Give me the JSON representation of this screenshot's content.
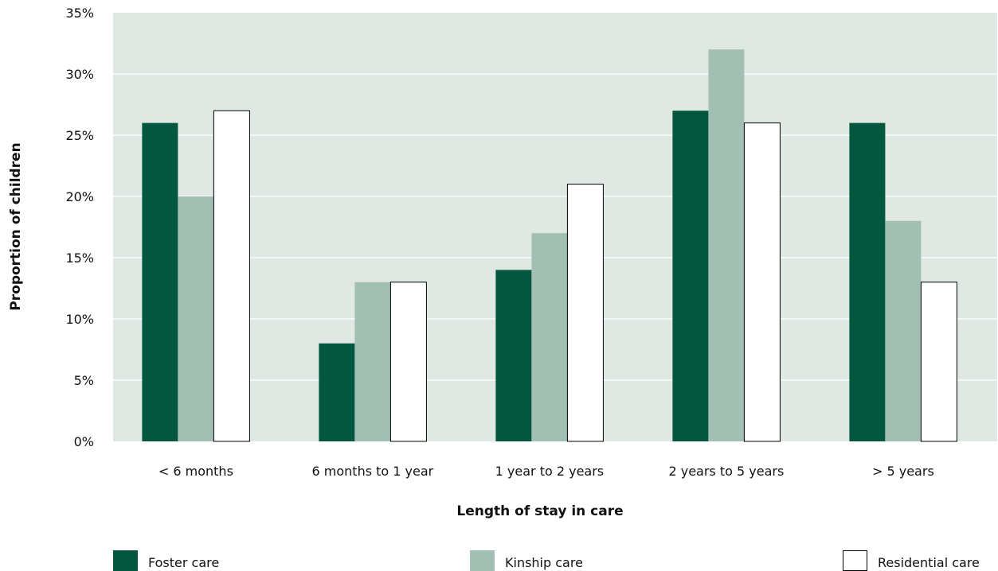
{
  "chart_data": {
    "type": "bar",
    "title": "",
    "xlabel": "Length of stay in care",
    "ylabel": "Proportion of children",
    "ylim": [
      0,
      35
    ],
    "yticks": [
      0,
      5,
      10,
      15,
      20,
      25,
      30,
      35
    ],
    "ytick_labels": [
      "0%",
      "5%",
      "10%",
      "15%",
      "20%",
      "25%",
      "30%",
      "35%"
    ],
    "categories": [
      "< 6 months",
      "6 months to 1 year",
      "1 year to 2 years",
      "2 years to 5 years",
      "> 5 years"
    ],
    "series": [
      {
        "name": "Foster care",
        "color": "#03573f",
        "values": [
          26,
          8,
          14,
          27,
          26
        ]
      },
      {
        "name": "Kinship care",
        "color": "#a2bfb3",
        "values": [
          20,
          13,
          17,
          32,
          18
        ]
      },
      {
        "name": "Residential care",
        "color": "#ffffff",
        "values": [
          27,
          13,
          21,
          26,
          13
        ]
      }
    ],
    "plot_background": "#dfe8e3",
    "grid": true,
    "legend_position": "bottom"
  }
}
